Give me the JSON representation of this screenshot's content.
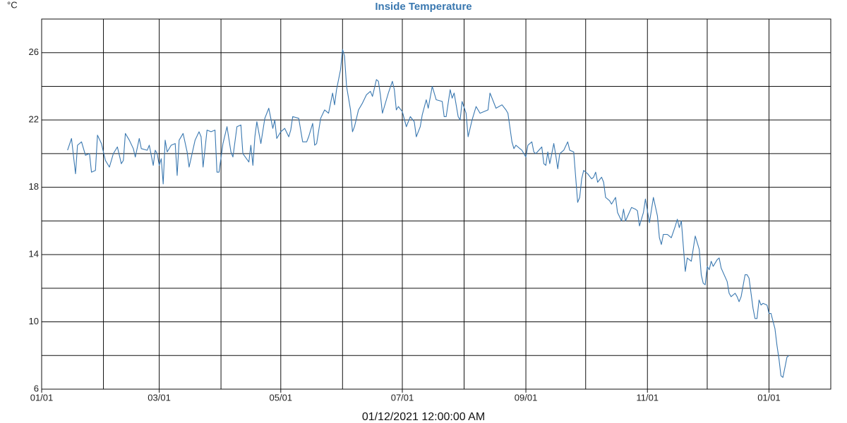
{
  "chart_data": {
    "type": "line",
    "title": "Inside Temperature",
    "y_unit": "°C",
    "x_label": "01/12/2021 12:00:00 AM",
    "color": "#3a78b0",
    "grid": true,
    "xlim": [
      0,
      396
    ],
    "xticks": [
      {
        "value": 0,
        "label": "01/01"
      },
      {
        "value": 59,
        "label": "03/01"
      },
      {
        "value": 120,
        "label": "05/01"
      },
      {
        "value": 181,
        "label": "07/01"
      },
      {
        "value": 243,
        "label": "09/01"
      },
      {
        "value": 304,
        "label": "11/01"
      },
      {
        "value": 365,
        "label": "01/01"
      }
    ],
    "minor_xticks": [
      31,
      90,
      151,
      212,
      273,
      334
    ],
    "ylim": [
      6,
      28
    ],
    "yticks": [
      6,
      10,
      14,
      18,
      22,
      26
    ],
    "minor_yticks": [
      8,
      12,
      16,
      20,
      24,
      28
    ],
    "x": [
      13,
      15,
      17,
      18,
      20,
      22,
      24,
      25,
      27,
      28,
      30,
      32,
      34,
      36,
      38,
      40,
      41,
      42,
      44,
      46,
      47,
      49,
      50,
      53,
      54,
      56,
      57,
      58,
      59,
      60,
      61,
      62,
      63,
      65,
      67,
      68,
      69,
      71,
      73,
      74,
      77,
      79,
      80,
      81,
      83,
      85,
      87,
      88,
      89,
      91,
      93,
      95,
      96,
      98,
      100,
      101,
      104,
      105,
      106,
      107,
      108,
      110,
      112,
      114,
      116,
      117,
      118,
      120,
      122,
      124,
      125,
      126,
      129,
      131,
      133,
      134,
      136,
      137,
      138,
      140,
      142,
      144,
      146,
      147,
      148,
      150,
      151,
      152,
      153,
      155,
      156,
      157,
      159,
      161,
      163,
      165,
      166,
      168,
      169,
      170,
      171,
      174,
      176,
      177,
      178,
      179,
      181,
      183,
      185,
      187,
      188,
      190,
      191,
      193,
      194,
      196,
      198,
      201,
      202,
      203,
      205,
      206,
      207,
      209,
      210,
      211,
      213,
      214,
      216,
      218,
      220,
      222,
      224,
      225,
      226,
      228,
      231,
      233,
      234,
      236,
      237,
      238,
      240,
      241,
      243,
      244,
      246,
      247,
      248,
      251,
      252,
      253,
      254,
      255,
      257,
      258,
      259,
      260,
      262,
      264,
      265,
      267,
      269,
      270,
      271,
      272,
      274,
      276,
      277,
      278,
      279,
      281,
      282,
      283,
      285,
      286,
      288,
      289,
      291,
      292,
      293,
      296,
      298,
      299,
      300,
      302,
      303,
      305,
      307,
      309,
      310,
      311,
      312,
      314,
      316,
      318,
      319,
      320,
      321,
      323,
      324,
      326,
      328,
      330,
      331,
      332,
      333,
      334,
      335,
      336,
      337,
      339,
      340,
      341,
      344,
      345,
      346,
      348,
      349,
      350,
      351,
      353,
      354,
      355,
      357,
      358,
      359,
      360,
      361,
      362,
      364,
      365,
      366,
      368,
      369,
      370,
      371,
      372,
      373,
      374,
      375
    ],
    "values": [
      20.2,
      20.9,
      18.8,
      20.5,
      20.7,
      19.9,
      20.0,
      18.9,
      19.0,
      21.1,
      20.6,
      19.6,
      19.2,
      20.0,
      20.4,
      19.4,
      19.6,
      21.2,
      20.8,
      20.3,
      19.8,
      20.9,
      20.3,
      20.2,
      20.5,
      19.3,
      20.2,
      20.0,
      19.3,
      19.7,
      18.2,
      20.8,
      20.1,
      20.5,
      20.6,
      18.7,
      20.8,
      21.2,
      20.1,
      19.2,
      20.8,
      21.3,
      21.0,
      19.2,
      21.4,
      21.3,
      21.4,
      18.9,
      18.9,
      20.6,
      21.6,
      20.1,
      19.8,
      21.6,
      21.7,
      20.0,
      19.5,
      20.5,
      19.3,
      21.0,
      21.9,
      20.6,
      22.1,
      22.7,
      21.5,
      22.0,
      20.9,
      21.3,
      21.5,
      21.0,
      21.4,
      22.2,
      22.1,
      20.7,
      20.7,
      21.0,
      21.8,
      20.5,
      20.6,
      22.1,
      22.6,
      22.4,
      23.6,
      22.9,
      23.8,
      25.0,
      26.2,
      25.8,
      24.0,
      22.6,
      21.3,
      21.6,
      22.6,
      23.0,
      23.5,
      23.7,
      23.4,
      24.4,
      24.3,
      23.5,
      22.4,
      23.6,
      24.3,
      23.8,
      22.6,
      22.8,
      22.5,
      21.6,
      22.2,
      21.9,
      21.0,
      21.6,
      22.3,
      23.2,
      22.7,
      24.0,
      23.2,
      23.1,
      22.2,
      22.2,
      23.8,
      23.3,
      23.6,
      22.2,
      22.0,
      23.1,
      22.4,
      21.0,
      22.0,
      22.8,
      22.4,
      22.5,
      22.6,
      23.6,
      23.3,
      22.7,
      22.9,
      22.6,
      22.4,
      20.7,
      20.3,
      20.5,
      20.3,
      20.2,
      19.8,
      20.5,
      20.7,
      20.1,
      20.0,
      20.4,
      19.4,
      19.3,
      20.1,
      19.4,
      20.6,
      19.9,
      19.1,
      20.0,
      20.2,
      20.7,
      20.2,
      20.1,
      17.1,
      17.4,
      18.5,
      19.0,
      18.8,
      18.5,
      18.6,
      18.9,
      18.3,
      18.6,
      18.3,
      17.4,
      17.2,
      17.0,
      17.4,
      16.5,
      16.0,
      16.7,
      16.0,
      16.8,
      16.7,
      16.6,
      15.7,
      16.5,
      17.3,
      15.9,
      17.4,
      16.3,
      15.0,
      14.6,
      15.2,
      15.2,
      15.0,
      15.7,
      16.1,
      15.6,
      16.0,
      13.0,
      13.8,
      13.6,
      15.1,
      14.3,
      12.8,
      12.3,
      12.2,
      13.3,
      13.1,
      13.6,
      13.3,
      13.7,
      13.8,
      13.2,
      12.4,
      11.7,
      11.5,
      11.7,
      11.5,
      11.2,
      11.5,
      12.8,
      12.8,
      12.6,
      10.8,
      10.2,
      10.2,
      11.3,
      11.0,
      11.1,
      11.0,
      10.5,
      10.5,
      9.6,
      8.6,
      7.8,
      6.8,
      6.7,
      7.3,
      7.9,
      8.0
    ]
  }
}
